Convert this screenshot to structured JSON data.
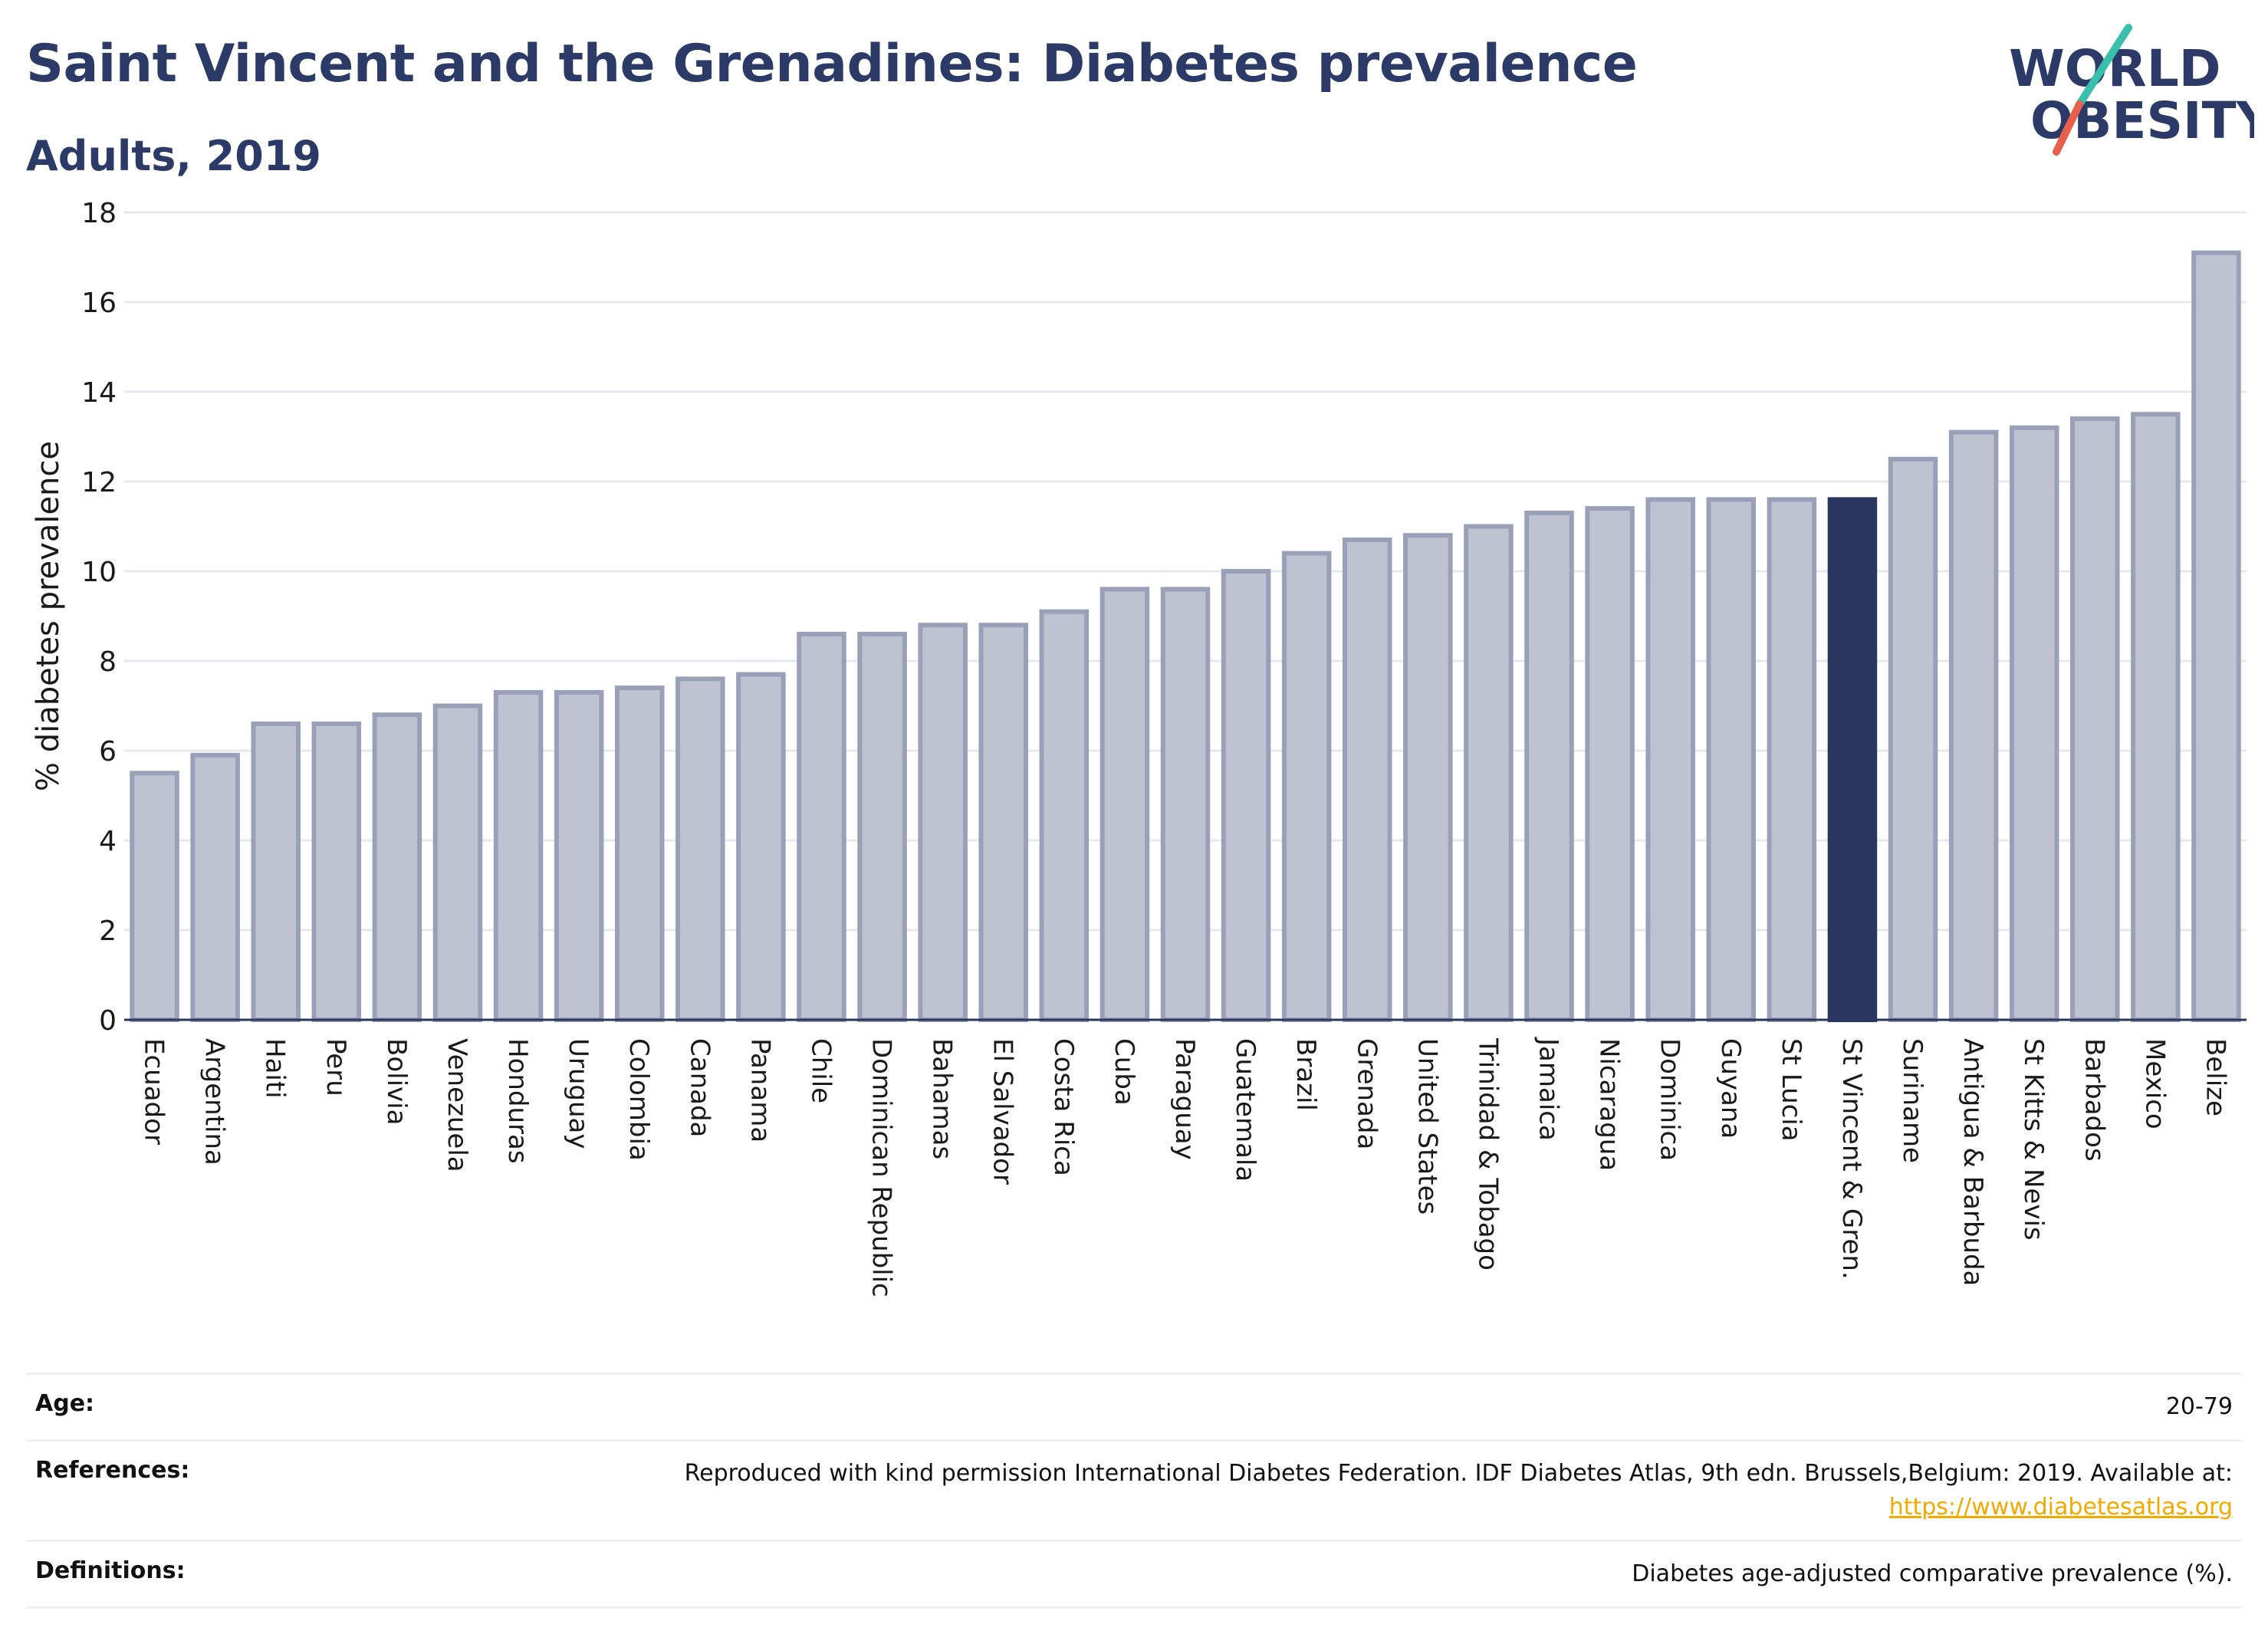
{
  "header": {
    "title": "Saint Vincent and the Grenadines: Diabetes prevalence",
    "subtitle": "Adults, 2019"
  },
  "logo": {
    "line1": "WORLD",
    "line2": "OBESITY",
    "accent_teal": "#3bbfad",
    "accent_red": "#e8604c",
    "text_color": "#2b3a67"
  },
  "colors": {
    "bar_fill": "#bfc3d1",
    "bar_stroke": "#9aa0b8",
    "highlight_fill": "#2b3660",
    "grid": "#e6e8ee",
    "axis": "#2b3660"
  },
  "chart_data": {
    "type": "bar",
    "ylabel": "% diabetes prevalence",
    "ylim": [
      0,
      18
    ],
    "yticks": [
      0,
      2,
      4,
      6,
      8,
      10,
      12,
      14,
      16,
      18
    ],
    "highlight": "St Vincent & Gren.",
    "grid": true,
    "categories": [
      "Ecuador",
      "Argentina",
      "Haiti",
      "Peru",
      "Bolivia",
      "Venezuela",
      "Honduras",
      "Uruguay",
      "Colombia",
      "Canada",
      "Panama",
      "Chile",
      "Dominican Republic",
      "Bahamas",
      "El Salvador",
      "Costa Rica",
      "Cuba",
      "Paraguay",
      "Guatemala",
      "Brazil",
      "Grenada",
      "United States",
      "Trinidad & Tobago",
      "Jamaica",
      "Nicaragua",
      "Dominica",
      "Guyana",
      "St Lucia",
      "St Vincent & Gren.",
      "Suriname",
      "Antigua & Barbuda",
      "St Kitts & Nevis",
      "Barbados",
      "Mexico",
      "Belize"
    ],
    "values": [
      5.5,
      5.9,
      6.6,
      6.6,
      6.8,
      7.0,
      7.3,
      7.3,
      7.4,
      7.6,
      7.7,
      8.6,
      8.6,
      8.8,
      8.8,
      9.1,
      9.6,
      9.6,
      10.0,
      10.4,
      10.7,
      10.8,
      11.0,
      11.3,
      11.4,
      11.6,
      11.6,
      11.6,
      11.6,
      12.5,
      13.1,
      13.2,
      13.4,
      13.5,
      17.1
    ]
  },
  "footer": {
    "age_label": "Age:",
    "age_value": "20-79",
    "references_label": "References:",
    "references_text": "Reproduced with kind permission International Diabetes Federation. IDF Diabetes Atlas, 9th edn. Brussels,Belgium: 2019. Available at:",
    "references_link": "https://www.diabetesatlas.org",
    "definitions_label": "Definitions:",
    "definitions_text": "Diabetes age-adjusted comparative prevalence (%)."
  }
}
